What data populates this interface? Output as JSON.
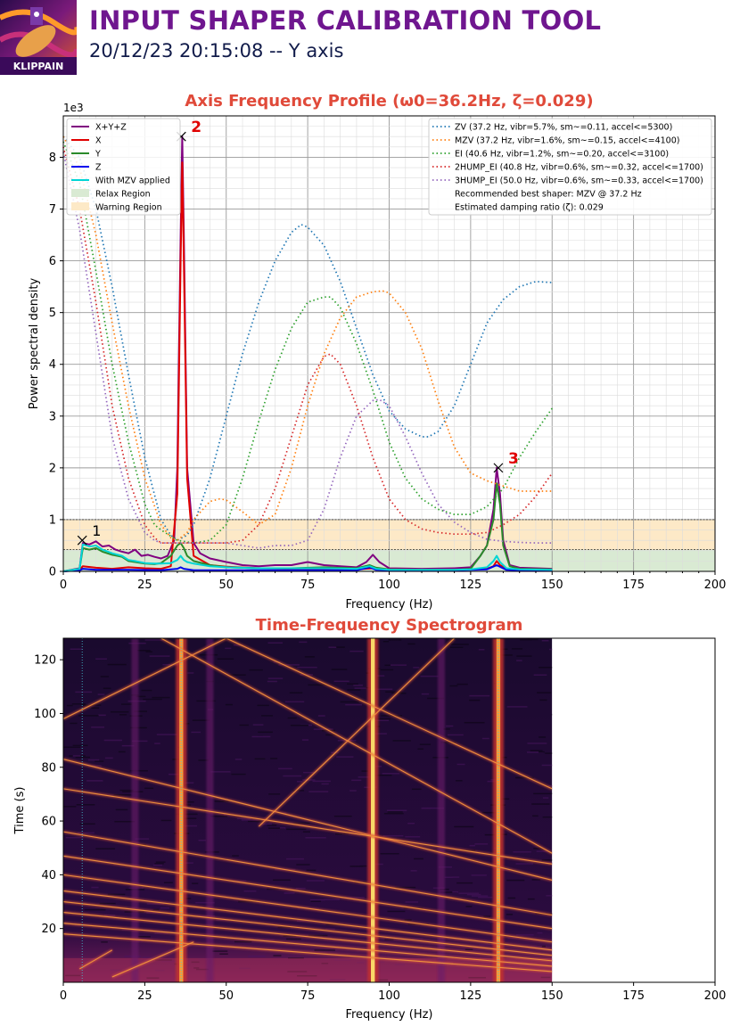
{
  "header": {
    "logo_text": "KLIPPAIN",
    "title": "INPUT SHAPER CALIBRATION TOOL",
    "subtitle": "20/12/23 20:15:08 -- Y axis"
  },
  "colors": {
    "title": "#6f168f",
    "plot_title": "#e04a3a",
    "peak_label": "#e00000",
    "relax_region": "#d9ead3",
    "warning_region": "#fde9c7"
  },
  "chart_data": [
    {
      "type": "line",
      "title": "Axis Frequency Profile (ω0=36.2Hz, ζ=0.029)",
      "xlabel": "Frequency (Hz)",
      "ylabel": "Power spectral density",
      "y_scale_label": "1e3",
      "xlim": [
        0,
        200
      ],
      "ylim": [
        0,
        8.8
      ],
      "xticks": [
        "0",
        "25",
        "50",
        "75",
        "100",
        "125",
        "150",
        "175",
        "200"
      ],
      "yticks": [
        "0",
        "1",
        "2",
        "3",
        "4",
        "5",
        "6",
        "7",
        "8"
      ],
      "grid": true,
      "y_units_note": "PSD values in thousands (x 1e3)",
      "regions": [
        {
          "name": "Relax Region",
          "y_from": 0,
          "y_to": 0.42
        },
        {
          "name": "Warning Region",
          "y_from": 0.42,
          "y_to": 1.0
        }
      ],
      "series": [
        {
          "name": "X+Y+Z",
          "color": "#800080",
          "x": [
            0,
            5,
            6,
            8,
            10,
            12,
            14,
            16,
            18,
            20,
            22,
            24,
            26,
            28,
            30,
            32,
            34,
            35,
            36,
            36.5,
            37,
            38,
            40,
            42,
            45,
            50,
            55,
            60,
            65,
            70,
            75,
            80,
            85,
            90,
            93,
            95,
            97,
            100,
            110,
            120,
            125,
            128,
            130,
            132,
            133,
            134,
            135,
            137,
            140,
            145,
            150
          ],
          "y": [
            0,
            0.06,
            0.55,
            0.52,
            0.58,
            0.48,
            0.5,
            0.42,
            0.38,
            0.35,
            0.42,
            0.3,
            0.32,
            0.28,
            0.25,
            0.3,
            0.6,
            2.0,
            6.5,
            8.4,
            6.5,
            2.0,
            0.55,
            0.35,
            0.25,
            0.18,
            0.12,
            0.1,
            0.12,
            0.12,
            0.18,
            0.12,
            0.1,
            0.08,
            0.18,
            0.32,
            0.18,
            0.06,
            0.05,
            0.06,
            0.08,
            0.3,
            0.5,
            1.2,
            2.0,
            1.5,
            0.6,
            0.12,
            0.07,
            0.06,
            0.05
          ]
        },
        {
          "name": "X",
          "color": "#e00000",
          "x": [
            0,
            5,
            6,
            10,
            15,
            20,
            25,
            30,
            33,
            35,
            36,
            36.5,
            37,
            38,
            40,
            45,
            50,
            60,
            70,
            80,
            90,
            95,
            100,
            120,
            130,
            132,
            133,
            134,
            136,
            140,
            150
          ],
          "y": [
            0,
            0.03,
            0.1,
            0.07,
            0.05,
            0.08,
            0.06,
            0.05,
            0.1,
            1.5,
            6.0,
            7.9,
            6.0,
            1.8,
            0.3,
            0.12,
            0.09,
            0.06,
            0.05,
            0.05,
            0.04,
            0.06,
            0.04,
            0.03,
            0.05,
            0.1,
            0.2,
            0.12,
            0.05,
            0.03,
            0.02
          ]
        },
        {
          "name": "Y",
          "color": "#2a8a2a",
          "x": [
            0,
            5,
            6,
            8,
            10,
            12,
            15,
            18,
            20,
            22,
            25,
            28,
            30,
            33,
            35,
            36,
            37,
            38,
            40,
            45,
            50,
            60,
            70,
            80,
            90,
            94,
            96,
            100,
            110,
            120,
            125,
            128,
            130,
            132,
            133,
            134,
            135,
            137,
            140,
            150
          ],
          "y": [
            0,
            0.05,
            0.45,
            0.42,
            0.45,
            0.38,
            0.32,
            0.28,
            0.2,
            0.18,
            0.15,
            0.14,
            0.16,
            0.3,
            0.5,
            0.55,
            0.45,
            0.3,
            0.2,
            0.12,
            0.08,
            0.06,
            0.06,
            0.08,
            0.06,
            0.12,
            0.07,
            0.04,
            0.03,
            0.03,
            0.05,
            0.3,
            0.5,
            1.0,
            1.7,
            1.3,
            0.5,
            0.1,
            0.05,
            0.04
          ]
        },
        {
          "name": "Z",
          "color": "#0000ee",
          "x": [
            0,
            5,
            6,
            10,
            20,
            30,
            35,
            36,
            37,
            40,
            60,
            80,
            90,
            94,
            96,
            100,
            120,
            130,
            133,
            136,
            140,
            150
          ],
          "y": [
            0,
            0.02,
            0.05,
            0.03,
            0.03,
            0.02,
            0.05,
            0.08,
            0.05,
            0.02,
            0.02,
            0.02,
            0.02,
            0.08,
            0.03,
            0.02,
            0.02,
            0.04,
            0.12,
            0.03,
            0.02,
            0.02
          ]
        },
        {
          "name": "With MZV applied",
          "color": "#00d5d5",
          "x": [
            0,
            5,
            6,
            8,
            10,
            12,
            15,
            18,
            20,
            22,
            25,
            28,
            30,
            33,
            35,
            36,
            37,
            38,
            40,
            45,
            50,
            60,
            70,
            80,
            90,
            94,
            96,
            100,
            110,
            120,
            125,
            130,
            132,
            133,
            134,
            136,
            140,
            150
          ],
          "y": [
            0,
            0.05,
            0.52,
            0.48,
            0.5,
            0.42,
            0.35,
            0.3,
            0.22,
            0.2,
            0.16,
            0.15,
            0.15,
            0.16,
            0.22,
            0.3,
            0.22,
            0.18,
            0.15,
            0.1,
            0.08,
            0.06,
            0.06,
            0.06,
            0.05,
            0.1,
            0.05,
            0.03,
            0.03,
            0.03,
            0.04,
            0.08,
            0.2,
            0.3,
            0.18,
            0.06,
            0.04,
            0.03
          ]
        },
        {
          "name": "ZV (37.2 Hz, vibr=5.7%, sm~=0.11, accel<=5300)",
          "color": "#1f77b4",
          "dotted": true,
          "x": [
            0,
            5,
            10,
            15,
            20,
            25,
            30,
            33,
            35,
            38,
            40,
            45,
            50,
            55,
            60,
            65,
            70,
            73,
            75,
            80,
            85,
            90,
            95,
            100,
            105,
            110,
            112,
            115,
            120,
            125,
            130,
            135,
            140,
            145,
            150
          ],
          "y": [
            8.4,
            8.0,
            7.0,
            5.5,
            3.8,
            2.2,
            1.0,
            0.7,
            0.6,
            0.7,
            0.9,
            1.8,
            3.0,
            4.2,
            5.2,
            6.0,
            6.55,
            6.7,
            6.65,
            6.3,
            5.6,
            4.7,
            3.8,
            3.1,
            2.75,
            2.6,
            2.6,
            2.7,
            3.2,
            4.0,
            4.8,
            5.25,
            5.5,
            5.6,
            5.58
          ]
        },
        {
          "name": "MZV (37.2 Hz, vibr=1.6%, sm~=0.15, accel<=4100)",
          "color": "#ff7f0e",
          "dotted": true,
          "x": [
            0,
            5,
            10,
            15,
            20,
            25,
            30,
            33,
            35,
            38,
            40,
            45,
            48,
            50,
            55,
            60,
            65,
            70,
            75,
            80,
            85,
            90,
            95,
            98,
            100,
            105,
            110,
            115,
            120,
            125,
            130,
            135,
            140,
            145,
            150
          ],
          "y": [
            8.4,
            7.8,
            6.5,
            4.8,
            3.2,
            1.8,
            0.9,
            0.65,
            0.6,
            0.75,
            1.0,
            1.35,
            1.4,
            1.38,
            1.15,
            0.9,
            1.1,
            2.0,
            3.2,
            4.2,
            4.9,
            5.3,
            5.4,
            5.42,
            5.38,
            5.0,
            4.3,
            3.3,
            2.4,
            1.9,
            1.75,
            1.65,
            1.55,
            1.55,
            1.55
          ]
        },
        {
          "name": "EI (40.6 Hz, vibr=1.2%, sm~=0.20, accel<=3100)",
          "color": "#2ca02c",
          "dotted": true,
          "x": [
            0,
            5,
            10,
            15,
            20,
            25,
            28,
            30,
            35,
            40,
            45,
            50,
            55,
            60,
            65,
            70,
            75,
            80,
            82,
            85,
            90,
            95,
            100,
            105,
            110,
            115,
            120,
            125,
            130,
            135,
            140,
            145,
            150
          ],
          "y": [
            8.3,
            7.5,
            5.8,
            4.0,
            2.5,
            1.3,
            0.9,
            0.8,
            0.6,
            0.55,
            0.6,
            0.9,
            1.8,
            2.9,
            3.9,
            4.7,
            5.2,
            5.3,
            5.3,
            5.1,
            4.4,
            3.5,
            2.5,
            1.8,
            1.4,
            1.2,
            1.1,
            1.1,
            1.25,
            1.6,
            2.2,
            2.7,
            3.15
          ]
        },
        {
          "name": "2HUMP_EI (40.8 Hz, vibr=0.6%, sm~=0.32, accel<=1700)",
          "color": "#d62728",
          "dotted": true,
          "x": [
            0,
            5,
            10,
            15,
            20,
            25,
            28,
            30,
            35,
            40,
            45,
            50,
            55,
            60,
            65,
            70,
            75,
            80,
            82,
            85,
            90,
            95,
            100,
            105,
            110,
            115,
            120,
            125,
            130,
            135,
            140,
            145,
            150
          ],
          "y": [
            8.2,
            7.0,
            5.2,
            3.2,
            1.8,
            0.9,
            0.65,
            0.55,
            0.55,
            0.55,
            0.55,
            0.55,
            0.6,
            0.9,
            1.6,
            2.6,
            3.6,
            4.15,
            4.2,
            4.0,
            3.2,
            2.2,
            1.4,
            1.0,
            0.82,
            0.75,
            0.72,
            0.72,
            0.75,
            0.9,
            1.1,
            1.45,
            1.9
          ]
        },
        {
          "name": "3HUMP_EI (50.0 Hz, vibr=0.6%, sm~=0.33, accel<=1700)",
          "color": "#9467bd",
          "dotted": true,
          "x": [
            0,
            5,
            10,
            15,
            20,
            25,
            28,
            30,
            35,
            40,
            45,
            50,
            55,
            60,
            65,
            70,
            75,
            80,
            85,
            90,
            95,
            97,
            100,
            105,
            110,
            115,
            120,
            125,
            130,
            135,
            140,
            145,
            150
          ],
          "y": [
            8.1,
            6.6,
            4.6,
            2.6,
            1.4,
            0.75,
            0.6,
            0.55,
            0.55,
            0.55,
            0.55,
            0.55,
            0.5,
            0.45,
            0.5,
            0.5,
            0.6,
            1.2,
            2.2,
            3.0,
            3.3,
            3.32,
            3.2,
            2.6,
            1.9,
            1.3,
            0.95,
            0.75,
            0.62,
            0.58,
            0.56,
            0.55,
            0.55
          ]
        }
      ],
      "legend_left": [
        "X+Y+Z",
        "X",
        "Y",
        "Z",
        "With MZV applied",
        "Relax Region",
        "Warning Region"
      ],
      "legend_right": [
        "ZV (37.2 Hz, vibr=5.7%, sm~=0.11, accel<=5300)",
        "MZV (37.2 Hz, vibr=1.6%, sm~=0.15, accel<=4100)",
        "EI (40.6 Hz, vibr=1.2%, sm~=0.20, accel<=3100)",
        "2HUMP_EI (40.8 Hz, vibr=0.6%, sm~=0.32, accel<=1700)",
        "3HUMP_EI (50.0 Hz, vibr=0.6%, sm~=0.33, accel<=1700)",
        "Recommended best shaper: MZV @ 37.2 Hz",
        "Estimated damping ratio (ζ): 0.029"
      ],
      "legend_placement": "top-left and top-right",
      "peaks": [
        {
          "label": "1",
          "x": 5.8,
          "y": 0.6,
          "label_color": "#000000"
        },
        {
          "label": "2",
          "x": 36.2,
          "y": 8.4,
          "label_color": "#e00000"
        },
        {
          "label": "3",
          "x": 133.5,
          "y": 2.0,
          "label_color": "#e00000"
        }
      ]
    },
    {
      "type": "heatmap",
      "title": "Time-Frequency Spectrogram",
      "xlabel": "Frequency (Hz)",
      "ylabel": "Time (s)",
      "xlim": [
        0,
        200
      ],
      "ylim": [
        0,
        128
      ],
      "data_xlim": [
        0,
        150
      ],
      "xticks": [
        "0",
        "25",
        "50",
        "75",
        "100",
        "125",
        "150",
        "175",
        "200"
      ],
      "yticks": [
        "20",
        "40",
        "60",
        "80",
        "100",
        "120"
      ],
      "colormap": "inferno",
      "vertical_bands_hz": [
        36.2,
        95,
        133.5,
        22,
        45,
        116
      ],
      "peak_marker_lines_hz": [
        5.8,
        36.2,
        133.5
      ],
      "sweep_lines": [
        {
          "x1": 0,
          "y1": 98,
          "x2": 50,
          "y2": 128
        },
        {
          "x1": 0,
          "y1": 83,
          "x2": 150,
          "y2": 38
        },
        {
          "x1": 0,
          "y1": 72,
          "x2": 150,
          "y2": 44
        },
        {
          "x1": 0,
          "y1": 56,
          "x2": 150,
          "y2": 25
        },
        {
          "x1": 0,
          "y1": 47,
          "x2": 150,
          "y2": 20
        },
        {
          "x1": 0,
          "y1": 40,
          "x2": 150,
          "y2": 15
        },
        {
          "x1": 0,
          "y1": 34,
          "x2": 150,
          "y2": 12
        },
        {
          "x1": 0,
          "y1": 30,
          "x2": 150,
          "y2": 10
        },
        {
          "x1": 0,
          "y1": 26,
          "x2": 150,
          "y2": 8
        },
        {
          "x1": 0,
          "y1": 22,
          "x2": 150,
          "y2": 6
        },
        {
          "x1": 0,
          "y1": 18,
          "x2": 150,
          "y2": 4
        },
        {
          "x1": 50,
          "y1": 128,
          "x2": 150,
          "y2": 72
        },
        {
          "x1": 60,
          "y1": 58,
          "x2": 120,
          "y2": 128
        },
        {
          "x1": 30,
          "y1": 128,
          "x2": 150,
          "y2": 48
        },
        {
          "x1": 5,
          "y1": 5,
          "x2": 15,
          "y2": 12
        },
        {
          "x1": 15,
          "y1": 2,
          "x2": 40,
          "y2": 15
        }
      ]
    }
  ]
}
